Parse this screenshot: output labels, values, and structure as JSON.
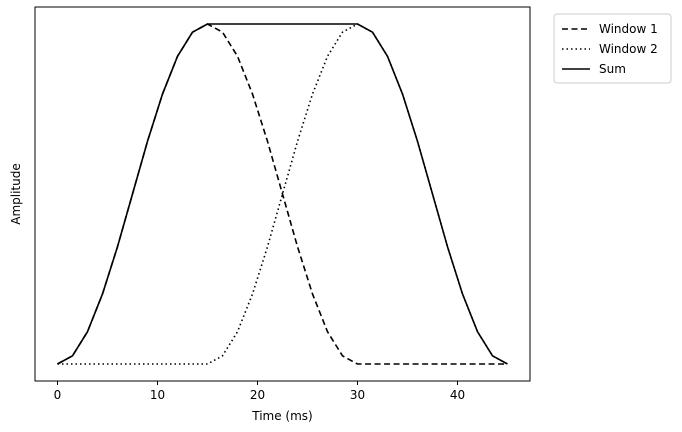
{
  "chart_data": {
    "type": "line",
    "title": "",
    "xlabel": "Time (ms)",
    "ylabel": "Amplitude",
    "xlim": [
      -2.25,
      47.25
    ],
    "ylim": [
      -0.05,
      1.05
    ],
    "xticks": [
      0,
      10,
      20,
      30,
      40
    ],
    "xtick_labels": [
      "0",
      "10",
      "20",
      "30",
      "40"
    ],
    "y_ticks_shown": false,
    "grid": false,
    "legend_position": "outside-top-right",
    "x": [
      0,
      1.5,
      3,
      4.5,
      6,
      7.5,
      9,
      10.5,
      12,
      13.5,
      15,
      16.5,
      18,
      19.5,
      21,
      22.5,
      24,
      25.5,
      27,
      28.5,
      30,
      31.5,
      33,
      34.5,
      36,
      37.5,
      39,
      40.5,
      42,
      43.5,
      45
    ],
    "series": [
      {
        "name": "Window 1",
        "line_style": "dashed",
        "color": "#000000",
        "values": [
          0,
          0.024,
          0.095,
          0.206,
          0.345,
          0.5,
          0.655,
          0.794,
          0.905,
          0.976,
          1,
          0.976,
          0.905,
          0.794,
          0.655,
          0.5,
          0.345,
          0.206,
          0.095,
          0.024,
          0,
          0,
          0,
          0,
          0,
          0,
          0,
          0,
          0,
          0,
          0
        ]
      },
      {
        "name": "Window 2",
        "line_style": "dotted",
        "color": "#000000",
        "values": [
          0,
          0,
          0,
          0,
          0,
          0,
          0,
          0,
          0,
          0,
          0,
          0.024,
          0.095,
          0.206,
          0.345,
          0.5,
          0.655,
          0.794,
          0.905,
          0.976,
          1,
          0.976,
          0.905,
          0.794,
          0.655,
          0.5,
          0.345,
          0.206,
          0.095,
          0.024,
          0
        ]
      },
      {
        "name": "Sum",
        "line_style": "solid",
        "color": "#000000",
        "values": [
          0,
          0.024,
          0.095,
          0.206,
          0.345,
          0.5,
          0.655,
          0.794,
          0.905,
          0.976,
          1,
          1,
          1,
          1,
          1,
          1,
          1,
          1,
          1,
          1,
          1,
          0.976,
          0.905,
          0.794,
          0.655,
          0.5,
          0.345,
          0.206,
          0.095,
          0.024,
          0
        ]
      }
    ]
  }
}
